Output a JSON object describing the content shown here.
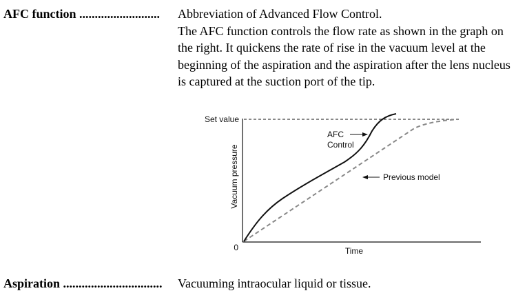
{
  "entries": [
    {
      "term": "AFC function",
      "dots": "..........................",
      "lines": [
        "Abbreviation of Advanced Flow Control.",
        "The AFC function controls the flow rate as shown in the graph on the right.  It quickens the rate of rise in the vacuum level at the beginning of the aspiration and the aspiration after the lens nucleus is captured at the suction port of the tip."
      ]
    },
    {
      "term": "Aspiration",
      "dots": "................................",
      "lines": [
        "Vacuuming intraocular liquid or tissue."
      ]
    }
  ],
  "chart_data": {
    "type": "line",
    "xlabel": "Time",
    "ylabel": "Vacuum pressure",
    "origin_label": "0",
    "reference_line": {
      "label": "Set value",
      "style": "dashed"
    },
    "annotations": [
      "AFC Control",
      "Previous model"
    ],
    "series": [
      {
        "name": "AFC Control",
        "style": "solid",
        "color": "#111111"
      },
      {
        "name": "Previous model",
        "style": "dashed",
        "color": "#888888"
      }
    ],
    "grid": false,
    "legend": "none"
  }
}
